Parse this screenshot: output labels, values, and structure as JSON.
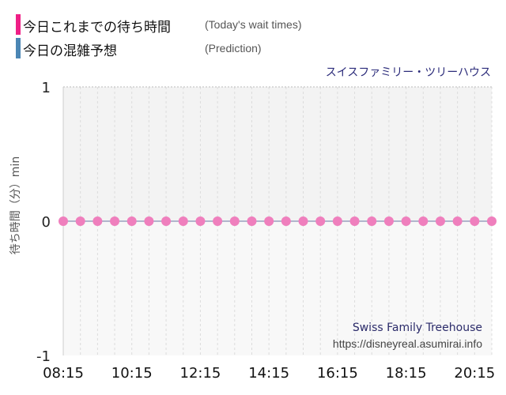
{
  "legend": [
    {
      "label": "今日これまでの待ち時間",
      "sub": "(Today's wait times)",
      "color": "#ef1f86"
    },
    {
      "label": "今日の混雑予想",
      "sub": "(Prediction)",
      "color": "#4b86b4"
    }
  ],
  "attraction_title": "スイスファミリー・ツリーハウス",
  "watermark": {
    "name": "Swiss Family Treehouse",
    "url": "https://disneyreal.asumirai.info"
  },
  "chart_data": {
    "type": "scatter",
    "ylabel": "待ち時間（分）min",
    "ylim": [
      -1,
      1
    ],
    "y_ticks": [
      1,
      0,
      -1
    ],
    "x_ticks": [
      "08:15",
      "10:15",
      "12:15",
      "14:15",
      "16:15",
      "18:15",
      "20:15"
    ],
    "grid": true,
    "series": [
      {
        "name": "今日これまでの待ち時間",
        "color": "#ef7fbd",
        "x": [
          "08:15",
          "08:45",
          "09:15",
          "09:45",
          "10:15",
          "10:45",
          "11:15",
          "11:45",
          "12:15",
          "12:45",
          "13:15",
          "13:45",
          "14:15",
          "14:45",
          "15:15",
          "15:45",
          "16:15",
          "16:45",
          "17:15",
          "17:45",
          "18:15",
          "18:45",
          "19:15",
          "19:45",
          "20:15",
          "20:45"
        ],
        "y": [
          0,
          0,
          0,
          0,
          0,
          0,
          0,
          0,
          0,
          0,
          0,
          0,
          0,
          0,
          0,
          0,
          0,
          0,
          0,
          0,
          0,
          0,
          0,
          0,
          0,
          0
        ]
      }
    ]
  }
}
